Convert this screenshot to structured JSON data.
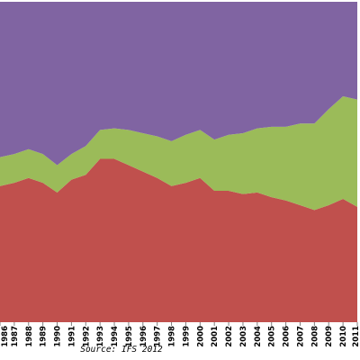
{
  "chart_data": {
    "type": "area",
    "stacking": "percent",
    "x": [
      "1986",
      "1987",
      "1988",
      "1989",
      "1990",
      "1991",
      "1992",
      "1993",
      "1994",
      "1995",
      "1996",
      "1997",
      "1998",
      "1999",
      "2000",
      "2001",
      "2002",
      "2003",
      "2004",
      "2005",
      "2006",
      "2007",
      "2008",
      "2009",
      "2010",
      "2011"
    ],
    "series": [
      {
        "color": "#c0504d",
        "values": [
          42.5,
          43.5,
          45,
          43.5,
          40.5,
          44.5,
          46,
          51,
          51,
          49,
          47,
          45,
          42.5,
          43.5,
          45,
          41,
          41,
          40,
          40.5,
          39,
          38,
          36.5,
          35,
          36.5,
          38.5,
          36
        ]
      },
      {
        "color": "#9bbb59",
        "values": [
          9,
          9,
          9,
          9,
          8.5,
          8,
          9,
          9,
          9.5,
          11,
          12,
          13,
          14,
          15,
          15,
          16,
          17.5,
          19,
          20,
          22,
          23,
          25.5,
          27,
          30,
          32,
          33.5
        ]
      },
      {
        "color": "#8064a2",
        "values": [
          48.5,
          47.5,
          46,
          47.5,
          51,
          47.5,
          45,
          40,
          39.5,
          40,
          41,
          42,
          43.5,
          41.5,
          40,
          43,
          41.5,
          41,
          39.5,
          39,
          39,
          38,
          38,
          33.5,
          29.5,
          30.5
        ]
      }
    ],
    "ylim": [
      0,
      100
    ],
    "grid": false,
    "legend": "none",
    "source": "Source: IFS 2012"
  }
}
